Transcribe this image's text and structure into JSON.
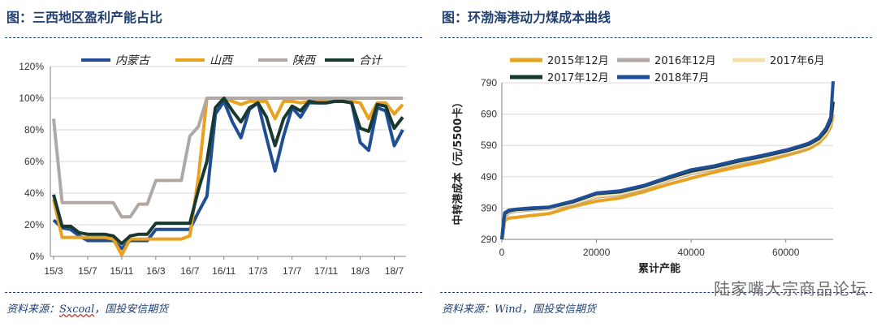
{
  "left": {
    "title": "图：三西地区盈利产能占比",
    "source_prefix": "资料来源：",
    "source_name": "Sxcoal",
    "source_suffix": "，国投安信期货"
  },
  "right": {
    "title": "图：环渤海港动力煤成本曲线",
    "source": "资料来源：Wind，国投安信期货"
  },
  "watermark": "陆家嘴大宗商品论坛",
  "chart_data": [
    {
      "type": "line",
      "title": "",
      "xlabel": "",
      "ylabel": "",
      "y_ticks": [
        "0%",
        "20%",
        "40%",
        "60%",
        "80%",
        "100%",
        "120%"
      ],
      "ylim": [
        0,
        120
      ],
      "x_tick_labels": [
        "15/3",
        "15/7",
        "15/11",
        "16/3",
        "16/7",
        "16/11",
        "17/3",
        "17/7",
        "17/11",
        "18/3",
        "18/7"
      ],
      "x_tick_index": [
        0,
        4,
        8,
        12,
        16,
        20,
        24,
        28,
        32,
        36,
        40
      ],
      "legend": [
        "内蒙古",
        "山西",
        "陕西",
        "合计"
      ],
      "series": [
        {
          "name": "内蒙古",
          "color": "#1f4e96",
          "values": [
            23,
            18,
            17,
            13,
            10,
            10,
            10,
            10,
            5,
            10,
            10,
            10,
            17,
            17,
            17,
            17,
            17,
            28,
            38,
            90,
            98,
            85,
            75,
            93,
            97,
            75,
            54,
            76,
            94,
            88,
            97,
            97,
            97,
            98,
            98,
            97,
            72,
            67,
            94,
            92,
            70,
            80
          ]
        },
        {
          "name": "山西",
          "color": "#e8a21f",
          "values": [
            36,
            12,
            12,
            12,
            12,
            12,
            12,
            11,
            1,
            11,
            11,
            11,
            11,
            11,
            11,
            11,
            13,
            50,
            100,
            100,
            100,
            98,
            96,
            98,
            98,
            98,
            87,
            98,
            98,
            97,
            98,
            98,
            98,
            98,
            98,
            98,
            97,
            87,
            97,
            97,
            90,
            96
          ]
        },
        {
          "name": "陕西",
          "color": "#b1a8a4",
          "values": [
            87,
            34,
            34,
            34,
            34,
            34,
            34,
            34,
            25,
            25,
            33,
            33,
            48,
            48,
            48,
            48,
            76,
            82,
            100,
            100,
            100,
            100,
            100,
            100,
            100,
            100,
            100,
            100,
            100,
            100,
            100,
            100,
            100,
            100,
            100,
            100,
            100,
            100,
            100,
            100,
            100,
            100
          ]
        },
        {
          "name": "合计",
          "color": "#17392f",
          "values": [
            39,
            19,
            19,
            15,
            14,
            14,
            14,
            13,
            8,
            13,
            14,
            14,
            21,
            21,
            21,
            21,
            21,
            42,
            60,
            94,
            100,
            92,
            85,
            94,
            97,
            88,
            70,
            87,
            95,
            92,
            98,
            97,
            97,
            98,
            98,
            97,
            81,
            79,
            96,
            95,
            81,
            88
          ]
        }
      ]
    },
    {
      "type": "line",
      "title": "",
      "xlabel": "累计产能",
      "ylabel": "中转港成本（元/5500卡）",
      "xlim": [
        0,
        70000
      ],
      "ylim": [
        290,
        790
      ],
      "x_ticks": [
        0,
        20000,
        40000,
        60000
      ],
      "y_ticks": [
        290,
        390,
        490,
        590,
        690,
        790
      ],
      "legend": [
        "2015年12月",
        "2016年12月",
        "2017年6月",
        "2017年12月",
        "2018年7月"
      ],
      "series": [
        {
          "name": "2015年12月",
          "color": "#e8a21f",
          "x": [
            0,
            200,
            600,
            1500,
            3000,
            6000,
            10000,
            15000,
            20000,
            25000,
            30000,
            35000,
            40000,
            45000,
            50000,
            55000,
            60000,
            63000,
            65000,
            67000,
            68500,
            69500,
            70000
          ],
          "y": [
            290,
            300,
            350,
            358,
            360,
            366,
            372,
            395,
            412,
            422,
            442,
            465,
            485,
            505,
            522,
            538,
            558,
            570,
            580,
            598,
            622,
            650,
            690
          ]
        },
        {
          "name": "2016年12月",
          "color": "#b1a8a4",
          "x": [
            0,
            200,
            600,
            1500,
            3000,
            6000,
            10000,
            15000,
            20000,
            25000,
            30000,
            35000,
            40000,
            45000,
            50000,
            55000,
            60000,
            63000,
            65000,
            67000,
            68500,
            69500,
            70000
          ],
          "y": [
            290,
            310,
            362,
            375,
            380,
            384,
            388,
            402,
            425,
            433,
            452,
            478,
            500,
            515,
            533,
            548,
            565,
            577,
            588,
            605,
            628,
            660,
            715
          ]
        },
        {
          "name": "2017年6月",
          "color": "#f5dfa8",
          "x": [
            0,
            200,
            600,
            1500,
            3000,
            6000,
            10000,
            15000,
            20000,
            25000,
            30000,
            35000,
            40000,
            45000,
            50000,
            55000,
            60000,
            63000,
            65000,
            67000,
            68500,
            69500,
            70000
          ],
          "y": [
            290,
            318,
            368,
            378,
            382,
            386,
            390,
            405,
            428,
            436,
            455,
            481,
            503,
            518,
            536,
            550,
            568,
            580,
            590,
            607,
            630,
            664,
            720
          ]
        },
        {
          "name": "2017年12月",
          "color": "#17392f",
          "x": [
            0,
            200,
            600,
            1500,
            3000,
            6000,
            10000,
            15000,
            20000,
            25000,
            30000,
            35000,
            40000,
            45000,
            50000,
            55000,
            60000,
            63000,
            65000,
            67000,
            68500,
            69500,
            70000
          ],
          "y": [
            290,
            320,
            372,
            381,
            385,
            388,
            392,
            410,
            436,
            442,
            460,
            485,
            508,
            522,
            540,
            555,
            572,
            585,
            595,
            612,
            638,
            670,
            730
          ]
        },
        {
          "name": "2018年7月",
          "color": "#1f4e96",
          "x": [
            0,
            200,
            600,
            1500,
            3000,
            6000,
            10000,
            15000,
            20000,
            25000,
            30000,
            35000,
            40000,
            45000,
            50000,
            55000,
            60000,
            63000,
            65000,
            67000,
            68500,
            69500,
            70000
          ],
          "y": [
            290,
            325,
            375,
            383,
            386,
            390,
            393,
            412,
            438,
            445,
            462,
            488,
            512,
            525,
            543,
            558,
            575,
            588,
            598,
            615,
            645,
            680,
            795
          ]
        }
      ]
    }
  ]
}
